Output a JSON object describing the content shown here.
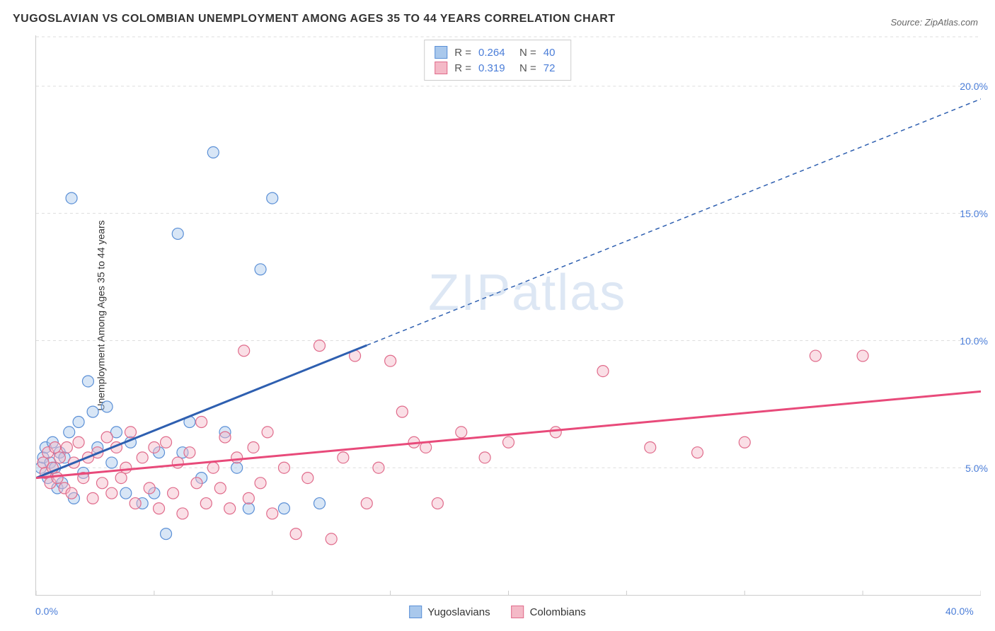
{
  "title": "YUGOSLAVIAN VS COLOMBIAN UNEMPLOYMENT AMONG AGES 35 TO 44 YEARS CORRELATION CHART",
  "source": "Source: ZipAtlas.com",
  "ylabel": "Unemployment Among Ages 35 to 44 years",
  "watermark": "ZIPatlas",
  "chart": {
    "type": "scatter",
    "background_color": "#ffffff",
    "grid_color": "#dddddd",
    "axis_color": "#cccccc",
    "xlim": [
      0,
      40
    ],
    "ylim": [
      0,
      22
    ],
    "y_ticks": [
      {
        "v": 5.0,
        "label": "5.0%"
      },
      {
        "v": 10.0,
        "label": "10.0%"
      },
      {
        "v": 15.0,
        "label": "15.0%"
      },
      {
        "v": 20.0,
        "label": "20.0%"
      }
    ],
    "x_ticks": [
      0,
      5,
      10,
      15,
      20,
      25,
      30,
      35,
      40
    ],
    "x_labels": [
      {
        "v": 0,
        "label": "0.0%"
      },
      {
        "v": 40,
        "label": "40.0%"
      }
    ],
    "marker_radius": 8,
    "marker_opacity": 0.45,
    "title_fontsize": 16,
    "label_fontsize": 14,
    "tick_fontsize": 14,
    "tick_label_color": "#4a7dd8",
    "series": [
      {
        "name": "Yugoslavians",
        "fill": "#a9c8ec",
        "stroke": "#5a8fd6",
        "trend_color": "#2e5fb0",
        "trend_width": 3,
        "trend_dash_after": 14,
        "trend": {
          "x0": 0,
          "y0": 4.6,
          "x1": 40,
          "y1": 19.5
        },
        "R": "0.264",
        "N": "40",
        "points": [
          [
            0.2,
            5.0
          ],
          [
            0.3,
            5.4
          ],
          [
            0.4,
            5.8
          ],
          [
            0.5,
            4.6
          ],
          [
            0.6,
            5.2
          ],
          [
            0.7,
            6.0
          ],
          [
            0.8,
            5.0
          ],
          [
            0.9,
            4.2
          ],
          [
            1.0,
            5.6
          ],
          [
            1.1,
            4.4
          ],
          [
            1.2,
            5.4
          ],
          [
            1.4,
            6.4
          ],
          [
            1.5,
            15.6
          ],
          [
            1.6,
            3.8
          ],
          [
            1.8,
            6.8
          ],
          [
            2.0,
            4.8
          ],
          [
            2.2,
            8.4
          ],
          [
            2.4,
            7.2
          ],
          [
            2.6,
            5.8
          ],
          [
            3.0,
            7.4
          ],
          [
            3.2,
            5.2
          ],
          [
            3.4,
            6.4
          ],
          [
            3.8,
            4.0
          ],
          [
            4.0,
            6.0
          ],
          [
            4.5,
            3.6
          ],
          [
            5.0,
            4.0
          ],
          [
            5.2,
            5.6
          ],
          [
            5.5,
            2.4
          ],
          [
            6.0,
            14.2
          ],
          [
            6.2,
            5.6
          ],
          [
            6.5,
            6.8
          ],
          [
            7.0,
            4.6
          ],
          [
            7.5,
            17.4
          ],
          [
            8.0,
            6.4
          ],
          [
            8.5,
            5.0
          ],
          [
            9.0,
            3.4
          ],
          [
            9.5,
            12.8
          ],
          [
            10.0,
            15.6
          ],
          [
            10.5,
            3.4
          ],
          [
            12.0,
            3.6
          ]
        ]
      },
      {
        "name": "Colombians",
        "fill": "#f4b9c7",
        "stroke": "#e06b8b",
        "trend_color": "#e84a7a",
        "trend_width": 3,
        "trend": {
          "x0": 0,
          "y0": 4.6,
          "x1": 40,
          "y1": 8.0
        },
        "R": "0.319",
        "N": "72",
        "points": [
          [
            0.3,
            5.2
          ],
          [
            0.4,
            4.8
          ],
          [
            0.5,
            5.6
          ],
          [
            0.6,
            4.4
          ],
          [
            0.7,
            5.0
          ],
          [
            0.8,
            5.8
          ],
          [
            0.9,
            4.6
          ],
          [
            1.0,
            5.4
          ],
          [
            1.2,
            4.2
          ],
          [
            1.3,
            5.8
          ],
          [
            1.5,
            4.0
          ],
          [
            1.6,
            5.2
          ],
          [
            1.8,
            6.0
          ],
          [
            2.0,
            4.6
          ],
          [
            2.2,
            5.4
          ],
          [
            2.4,
            3.8
          ],
          [
            2.6,
            5.6
          ],
          [
            2.8,
            4.4
          ],
          [
            3.0,
            6.2
          ],
          [
            3.2,
            4.0
          ],
          [
            3.4,
            5.8
          ],
          [
            3.6,
            4.6
          ],
          [
            3.8,
            5.0
          ],
          [
            4.0,
            6.4
          ],
          [
            4.2,
            3.6
          ],
          [
            4.5,
            5.4
          ],
          [
            4.8,
            4.2
          ],
          [
            5.0,
            5.8
          ],
          [
            5.2,
            3.4
          ],
          [
            5.5,
            6.0
          ],
          [
            5.8,
            4.0
          ],
          [
            6.0,
            5.2
          ],
          [
            6.2,
            3.2
          ],
          [
            6.5,
            5.6
          ],
          [
            6.8,
            4.4
          ],
          [
            7.0,
            6.8
          ],
          [
            7.2,
            3.6
          ],
          [
            7.5,
            5.0
          ],
          [
            7.8,
            4.2
          ],
          [
            8.0,
            6.2
          ],
          [
            8.2,
            3.4
          ],
          [
            8.5,
            5.4
          ],
          [
            8.8,
            9.6
          ],
          [
            9.0,
            3.8
          ],
          [
            9.2,
            5.8
          ],
          [
            9.5,
            4.4
          ],
          [
            9.8,
            6.4
          ],
          [
            10.0,
            3.2
          ],
          [
            10.5,
            5.0
          ],
          [
            11.0,
            2.4
          ],
          [
            11.5,
            4.6
          ],
          [
            12.0,
            9.8
          ],
          [
            12.5,
            2.2
          ],
          [
            13.0,
            5.4
          ],
          [
            13.5,
            9.4
          ],
          [
            14.0,
            3.6
          ],
          [
            14.5,
            5.0
          ],
          [
            15.0,
            9.2
          ],
          [
            15.5,
            7.2
          ],
          [
            16.0,
            6.0
          ],
          [
            16.5,
            5.8
          ],
          [
            17.0,
            3.6
          ],
          [
            18.0,
            6.4
          ],
          [
            19.0,
            5.4
          ],
          [
            20.0,
            6.0
          ],
          [
            22.0,
            6.4
          ],
          [
            24.0,
            8.8
          ],
          [
            26.0,
            5.8
          ],
          [
            28.0,
            5.6
          ],
          [
            30.0,
            6.0
          ],
          [
            33.0,
            9.4
          ],
          [
            35.0,
            9.4
          ]
        ]
      }
    ]
  },
  "stat_box": {
    "r_label": "R =",
    "n_label": "N ="
  }
}
